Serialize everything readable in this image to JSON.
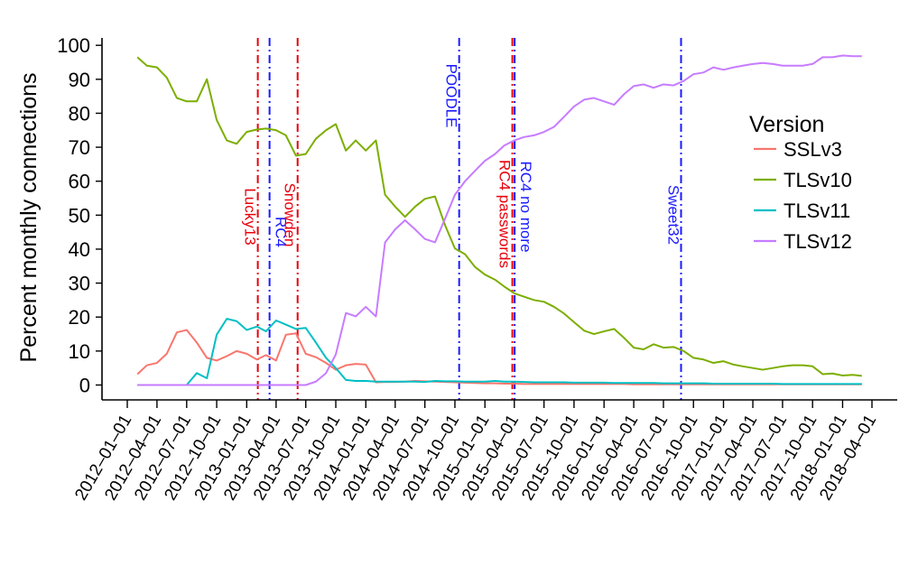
{
  "chart_data": {
    "type": "line",
    "ylabel": "Percent monthly connections",
    "xlabel": "",
    "ylim": [
      0,
      100
    ],
    "yticks": [
      0,
      10,
      20,
      30,
      40,
      50,
      60,
      70,
      80,
      90,
      100
    ],
    "xticks": [
      "2012-01-01",
      "2012-04-01",
      "2012-07-01",
      "2012-10-01",
      "2013-01-01",
      "2013-04-01",
      "2013-07-01",
      "2013-10-01",
      "2014-01-01",
      "2014-04-01",
      "2014-07-01",
      "2014-10-01",
      "2015-01-01",
      "2015-04-01",
      "2015-07-01",
      "2015-10-01",
      "2016-01-01",
      "2016-04-01",
      "2016-07-01",
      "2016-10-01",
      "2017-01-01",
      "2017-04-01",
      "2017-07-01",
      "2017-10-01",
      "2018-01-01",
      "2018-04-01"
    ],
    "xtick_labels": [
      "2012–01–01",
      "2012–04–01",
      "2012–07–01",
      "2012–10–01",
      "2013–01–01",
      "2013–04–01",
      "2013–07–01",
      "2013–10–01",
      "2014–01–01",
      "2014–04–01",
      "2014–07–01",
      "2014–10–01",
      "2015–01–01",
      "2015–04–01",
      "2015–07–01",
      "2015–10–01",
      "2016–01–01",
      "2016–04–01",
      "2016–07–01",
      "2016–10–01",
      "2017–01–01",
      "2017–04–01",
      "2017–07–01",
      "2017–10–01",
      "2018–01–01",
      "2018–04–01"
    ],
    "grid": false,
    "legend": {
      "title": "Version",
      "placement": "right"
    },
    "x": [
      "2012-02-01",
      "2012-03-01",
      "2012-04-01",
      "2012-05-01",
      "2012-06-01",
      "2012-07-01",
      "2012-08-01",
      "2012-09-01",
      "2012-10-01",
      "2012-11-01",
      "2012-12-01",
      "2013-01-01",
      "2013-02-01",
      "2013-03-01",
      "2013-04-01",
      "2013-05-01",
      "2013-06-01",
      "2013-07-01",
      "2013-08-01",
      "2013-09-01",
      "2013-10-01",
      "2013-11-01",
      "2013-12-01",
      "2014-01-01",
      "2014-02-01",
      "2014-03-01",
      "2014-04-01",
      "2014-05-01",
      "2014-06-01",
      "2014-07-01",
      "2014-08-01",
      "2014-09-01",
      "2014-10-01",
      "2014-11-01",
      "2014-12-01",
      "2015-01-01",
      "2015-02-01",
      "2015-03-01",
      "2015-04-01",
      "2015-05-01",
      "2015-06-01",
      "2015-07-01",
      "2015-08-01",
      "2015-09-01",
      "2015-10-01",
      "2015-11-01",
      "2015-12-01",
      "2016-01-01",
      "2016-02-01",
      "2016-03-01",
      "2016-04-01",
      "2016-05-01",
      "2016-06-01",
      "2016-07-01",
      "2016-08-01",
      "2016-09-01",
      "2016-10-01",
      "2016-11-01",
      "2016-12-01",
      "2017-01-01",
      "2017-02-01",
      "2017-03-01",
      "2017-04-01",
      "2017-05-01",
      "2017-06-01",
      "2017-07-01",
      "2017-08-01",
      "2017-09-01",
      "2017-10-01",
      "2017-11-01",
      "2017-12-01",
      "2018-01-01",
      "2018-02-01",
      "2018-03-01"
    ],
    "series": [
      {
        "name": "SSLv3",
        "color": "#F8766D",
        "values": [
          3.2,
          5.8,
          6.5,
          9.2,
          15.5,
          16.2,
          12.5,
          8.0,
          7.2,
          8.5,
          10.0,
          9.2,
          7.5,
          8.8,
          7.2,
          14.8,
          15.2,
          9.2,
          8.2,
          6.5,
          4.5,
          5.8,
          6.2,
          6.0,
          0.8,
          0.9,
          0.9,
          1.0,
          1.2,
          1.1,
          1.0,
          0.9,
          0.8,
          0.7,
          0.6,
          0.5,
          0.5,
          0.4,
          0.4,
          0.3,
          0.3,
          0.3,
          0.3,
          0.3,
          0.3,
          0.3,
          0.3,
          0.3,
          0.3,
          0.3,
          0.2,
          0.2,
          0.2,
          0.2,
          0.2,
          0.2,
          0.2,
          0.2,
          0.2,
          0.2,
          0.2,
          0.2,
          0.2,
          0.2,
          0.2,
          0.2,
          0.2,
          0.2,
          0.2,
          0.2,
          0.2,
          0.2,
          0.2,
          0.2
        ]
      },
      {
        "name": "TLSv10",
        "color": "#7CAE00",
        "values": [
          96.5,
          94.0,
          93.5,
          90.5,
          84.5,
          83.5,
          83.5,
          90.0,
          78.0,
          72.0,
          71.0,
          74.5,
          75.2,
          75.5,
          75.0,
          73.5,
          67.5,
          68.0,
          72.5,
          75.0,
          76.8,
          69.0,
          72.0,
          69.0,
          72.0,
          56.0,
          52.5,
          49.5,
          52.5,
          54.8,
          55.5,
          47.0,
          40.2,
          38.5,
          34.8,
          32.5,
          31.0,
          29.0,
          27.0,
          26.0,
          25.0,
          24.5,
          23.0,
          21.0,
          18.5,
          16.0,
          15.0,
          15.8,
          16.5,
          14.0,
          11.0,
          10.5,
          12.0,
          11.0,
          11.2,
          10.0,
          8.0,
          7.5,
          6.5,
          7.0,
          6.0,
          5.5,
          5.0,
          4.5,
          5.0,
          5.5,
          5.8,
          5.8,
          5.5,
          3.2,
          3.4,
          2.8,
          3.0,
          2.7
        ]
      },
      {
        "name": "TLSv11",
        "color": "#00BFC4",
        "values": [
          0,
          0,
          0,
          0,
          0,
          0,
          3.5,
          2.0,
          14.8,
          19.5,
          18.8,
          16.2,
          17.2,
          15.8,
          19.0,
          17.8,
          16.5,
          16.8,
          12.5,
          8.0,
          5.0,
          1.5,
          1.2,
          1.2,
          1.0,
          1.0,
          1.0,
          1.0,
          1.0,
          0.9,
          1.2,
          1.1,
          1.1,
          1.0,
          1.0,
          1.0,
          1.2,
          1.0,
          1.0,
          0.9,
          0.8,
          0.8,
          0.8,
          0.8,
          0.7,
          0.7,
          0.7,
          0.7,
          0.6,
          0.6,
          0.6,
          0.6,
          0.6,
          0.5,
          0.5,
          0.5,
          0.5,
          0.5,
          0.4,
          0.4,
          0.4,
          0.4,
          0.4,
          0.4,
          0.4,
          0.3,
          0.3,
          0.3,
          0.3,
          0.3,
          0.3,
          0.3,
          0.3,
          0.3
        ]
      },
      {
        "name": "TLSv12",
        "color": "#C77CFF",
        "values": [
          0,
          0,
          0,
          0,
          0,
          0,
          0,
          0,
          0,
          0,
          0,
          0,
          0,
          0,
          0,
          0,
          0,
          0,
          1.0,
          3.5,
          9.0,
          21.2,
          20.2,
          23.0,
          20.2,
          42.0,
          45.8,
          48.5,
          45.8,
          43.0,
          42.0,
          49.0,
          56.0,
          60.0,
          63.0,
          66.0,
          68.0,
          70.5,
          72.0,
          73.0,
          73.5,
          74.5,
          76.0,
          79.0,
          82.0,
          84.0,
          84.5,
          83.5,
          82.5,
          85.5,
          88.0,
          88.5,
          87.5,
          88.5,
          88.2,
          89.5,
          91.5,
          92.0,
          93.5,
          92.8,
          93.5,
          94.0,
          94.5,
          94.8,
          94.5,
          94.0,
          94.0,
          94.0,
          94.5,
          96.5,
          96.5,
          97.0,
          96.8,
          96.8
        ]
      }
    ],
    "annotations": [
      {
        "label": "Lucky13",
        "date": "2013-02-04",
        "color": "#e8000b"
      },
      {
        "label": "RC4",
        "date": "2013-03-12",
        "color": "#1a1aff"
      },
      {
        "label": "Snowden",
        "date": "2013-06-06",
        "color": "#e8000b"
      },
      {
        "label": "POODLE",
        "date": "2014-10-14",
        "color": "#1a1aff"
      },
      {
        "label": "RC4 passwords",
        "date": "2015-03-26",
        "color": "#e8000b"
      },
      {
        "label": "RC4 no more",
        "date": "2015-04-02",
        "color": "#1a1aff"
      },
      {
        "label": "Sweet32",
        "date": "2016-08-24",
        "color": "#1a1aff"
      }
    ]
  }
}
